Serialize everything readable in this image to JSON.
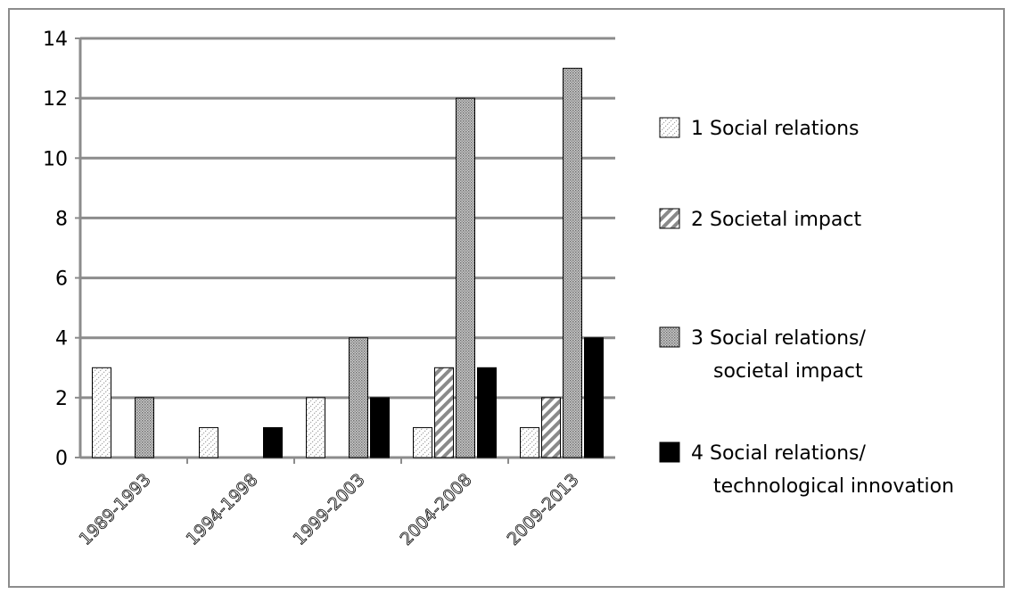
{
  "chart_data": {
    "type": "bar",
    "categories": [
      "1989-1993",
      "1994-1998",
      "1999-2003",
      "2004-2008",
      "2009-2013"
    ],
    "series": [
      {
        "name": "1 Social relations",
        "values": [
          3,
          1,
          2,
          1,
          1
        ],
        "pattern": "dots-light"
      },
      {
        "name": "2 Societal impact",
        "values": [
          0,
          0,
          0,
          3,
          2
        ],
        "pattern": "diagonal-stripes"
      },
      {
        "name": "3 Social relations/ societal impact",
        "name_lines": [
          "3 Social relations/",
          "societal impact"
        ],
        "values": [
          2,
          0,
          4,
          12,
          13
        ],
        "pattern": "dense-dots"
      },
      {
        "name": "4 Social relations/ technological innovation",
        "name_lines": [
          "4 Social relations/",
          "technological innovation"
        ],
        "values": [
          0,
          1,
          2,
          3,
          4
        ],
        "pattern": "solid-black"
      }
    ],
    "yticks": [
      0,
      2,
      4,
      6,
      8,
      10,
      12,
      14
    ],
    "ylim": [
      0,
      14
    ],
    "grid": true,
    "legend_position": "right",
    "colors": {
      "grid": "#8c8c8c",
      "bar_stroke": "#000000",
      "solid": "#000000"
    }
  }
}
